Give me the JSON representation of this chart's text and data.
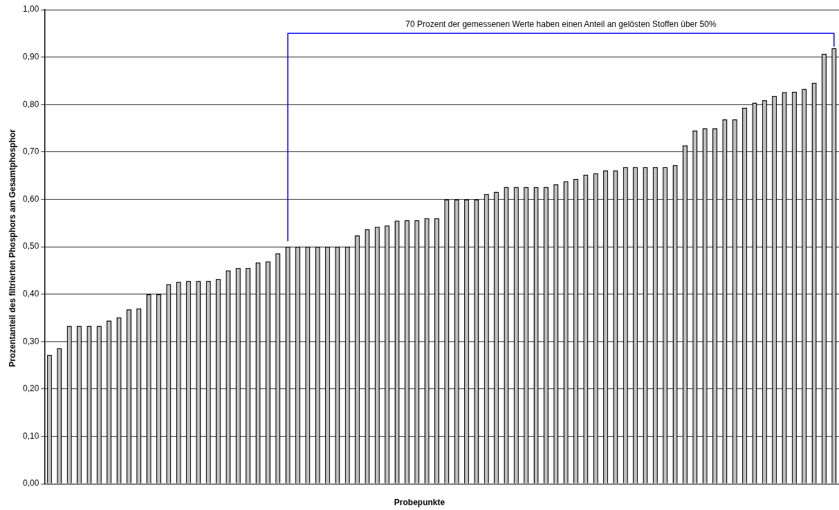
{
  "chart_data": {
    "type": "bar",
    "xlabel": "Probepunkte",
    "ylabel": "Prozentanteil des filtrierten Phosphors am Gesamtphosphor",
    "ref_lines": [
      {
        "axis": "y",
        "value": 0.95,
        "label": "70 Prozent der gemessenen Werte haben einen Anteil an gelösten Stoffen über 50%",
        "color": "#0000ff"
      }
    ],
    "categories": [
      null,
      null,
      null,
      null,
      null,
      null,
      null,
      null,
      null,
      null,
      null,
      null,
      null,
      null,
      null,
      null,
      null,
      null,
      null,
      null,
      null,
      null,
      null,
      null,
      null,
      null,
      null,
      null,
      null,
      null,
      null,
      null,
      null,
      null,
      null,
      null,
      null,
      null,
      null,
      null,
      null,
      null,
      null,
      null,
      null,
      null,
      null,
      null,
      null,
      null,
      null,
      null,
      null,
      null,
      null,
      null,
      null,
      null,
      null,
      null,
      null,
      null,
      null,
      null,
      null,
      null,
      null,
      null,
      null,
      null,
      null,
      null,
      null,
      null,
      null,
      null,
      null,
      null,
      null,
      null
    ],
    "values": [
      0.272,
      0.286,
      0.333,
      0.333,
      0.333,
      0.333,
      0.344,
      0.351,
      0.368,
      0.37,
      0.4,
      0.4,
      0.421,
      0.426,
      0.428,
      0.428,
      0.428,
      0.432,
      0.45,
      0.455,
      0.455,
      0.467,
      0.469,
      0.486,
      0.5,
      0.5,
      0.5,
      0.5,
      0.5,
      0.5,
      0.5,
      0.524,
      0.537,
      0.542,
      0.545,
      0.555,
      0.556,
      0.556,
      0.56,
      0.56,
      0.6,
      0.6,
      0.6,
      0.6,
      0.611,
      0.616,
      0.626,
      0.626,
      0.626,
      0.626,
      0.626,
      0.632,
      0.638,
      0.643,
      0.652,
      0.655,
      0.661,
      0.661,
      0.668,
      0.668,
      0.668,
      0.668,
      0.668,
      0.672,
      0.714,
      0.745,
      0.75,
      0.75,
      0.769,
      0.769,
      0.793,
      0.804,
      0.809,
      0.818,
      0.826,
      0.827,
      0.833,
      0.846,
      0.907,
      0.919
    ],
    "color": "#c0c0c0",
    "ylim": [
      0,
      1
    ],
    "yticks": [
      {
        "value": 0,
        "label": "0,00"
      },
      {
        "value": 0.1,
        "label": "0,10"
      },
      {
        "value": 0.2,
        "label": "0,20"
      },
      {
        "value": 0.3,
        "label": "0,30"
      },
      {
        "value": 0.4,
        "label": "0,40"
      },
      {
        "value": 0.5,
        "label": "0,50"
      },
      {
        "value": 0.6,
        "label": "0,60"
      },
      {
        "value": 0.7,
        "label": "0,70"
      },
      {
        "value": 0.8,
        "label": "0,80"
      },
      {
        "value": 0.9,
        "label": "0,90"
      },
      {
        "value": 1,
        "label": "1,00"
      }
    ],
    "grid": "y",
    "legend": false
  }
}
